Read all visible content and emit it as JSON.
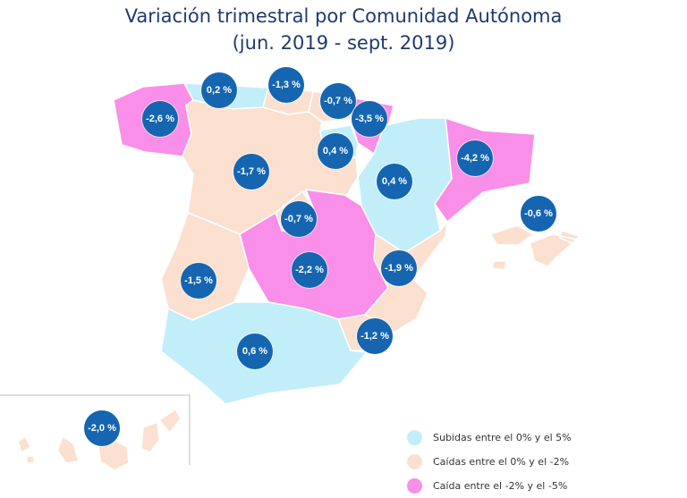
{
  "title": {
    "line1": "Variación trimestral por Comunidad Autónoma",
    "line2": "(jun. 2019 - sept. 2019)"
  },
  "colors": {
    "up": "#c2eefa",
    "down_small": "#fbe0d0",
    "down_large": "#f98fe8",
    "bubble": "#1565b0",
    "title": "#1f3a70"
  },
  "regions": [
    {
      "id": "galicia",
      "value": "-2,6 %",
      "category": "down_large"
    },
    {
      "id": "asturias",
      "value": "0,2 %",
      "category": "up"
    },
    {
      "id": "cantabria",
      "value": "-1,3 %",
      "category": "down_small"
    },
    {
      "id": "pais-vasco",
      "value": "-0,7 %",
      "category": "down_small"
    },
    {
      "id": "navarra",
      "value": "-3,5 %",
      "category": "down_large"
    },
    {
      "id": "la-rioja",
      "value": "0,4 %",
      "category": "up"
    },
    {
      "id": "aragon",
      "value": "0,4 %",
      "category": "up"
    },
    {
      "id": "cataluna",
      "value": "-4,2 %",
      "category": "down_large"
    },
    {
      "id": "castilla-y-leon",
      "value": "-1,7 %",
      "category": "down_small"
    },
    {
      "id": "madrid",
      "value": "-0,7 %",
      "category": "down_small"
    },
    {
      "id": "castilla-la-mancha",
      "value": "-2,2 %",
      "category": "down_large"
    },
    {
      "id": "extremadura",
      "value": "-1,5 %",
      "category": "down_small"
    },
    {
      "id": "comunidad-valenciana",
      "value": "-1,9 %",
      "category": "down_small"
    },
    {
      "id": "murcia",
      "value": "-1,2 %",
      "category": "down_small"
    },
    {
      "id": "andalucia",
      "value": "0,6 %",
      "category": "up"
    },
    {
      "id": "baleares",
      "value": "-0,6 %",
      "category": "down_small"
    },
    {
      "id": "canarias",
      "value": "-2,0 %",
      "category": "down_small"
    }
  ],
  "legend": [
    {
      "label": "Subidas entre el 0% y el 5%",
      "category": "up"
    },
    {
      "label": "Caídas entre el 0% y el -2%",
      "category": "down_small"
    },
    {
      "label": "Caída entre el -2% y el -5%",
      "category": "down_large"
    }
  ]
}
